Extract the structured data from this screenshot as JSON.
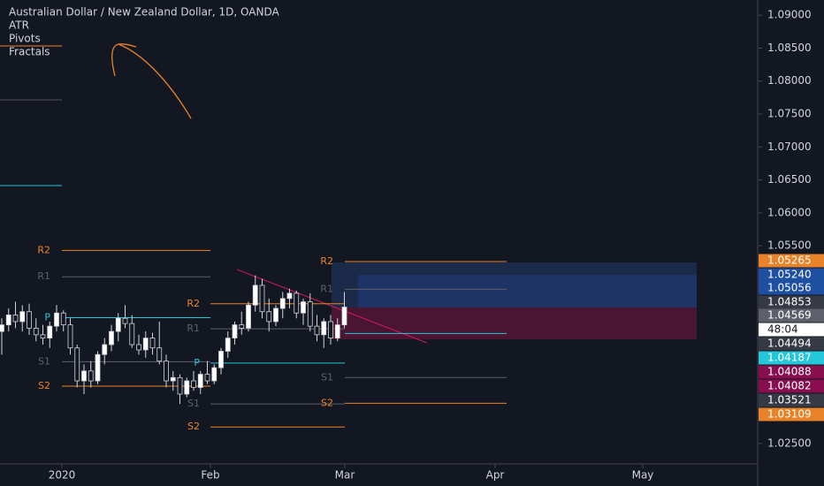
{
  "chart_data": {
    "type": "candlestick",
    "title": "Australian Dollar / New Zealand Dollar, 1D, OANDA",
    "indicators": [
      "ATR",
      "Pivots",
      "Fractals"
    ],
    "ylim": [
      1.0219,
      1.0923
    ],
    "yticks": [
      {
        "value": 1.09,
        "label": "1.09000"
      },
      {
        "value": 1.085,
        "label": "1.08500"
      },
      {
        "value": 1.08,
        "label": "1.08000"
      },
      {
        "value": 1.075,
        "label": "1.07500"
      },
      {
        "value": 1.07,
        "label": "1.07000"
      },
      {
        "value": 1.065,
        "label": "1.06500"
      },
      {
        "value": 1.06,
        "label": "1.06000"
      },
      {
        "value": 1.055,
        "label": "1.05500"
      },
      {
        "value": 1.025,
        "label": "1.02500"
      }
    ],
    "xlabels": [
      "2020",
      "Feb",
      "Mar",
      "Apr",
      "May"
    ],
    "candles": [
      [
        1.042,
        1.044,
        1.0385,
        1.043
      ],
      [
        1.043,
        1.0455,
        1.042,
        1.0445
      ],
      [
        1.0445,
        1.0465,
        1.0425,
        1.0435
      ],
      [
        1.0435,
        1.046,
        1.042,
        1.045
      ],
      [
        1.045,
        1.0462,
        1.0415,
        1.0425
      ],
      [
        1.0425,
        1.044,
        1.0405,
        1.0415
      ],
      [
        1.0415,
        1.043,
        1.04,
        1.041
      ],
      [
        1.041,
        1.0435,
        1.0395,
        1.0428
      ],
      [
        1.0428,
        1.046,
        1.042,
        1.0448
      ],
      [
        1.0448,
        1.0452,
        1.042,
        1.043
      ],
      [
        1.043,
        1.044,
        1.0385,
        1.0395
      ],
      [
        1.0395,
        1.04,
        1.0335,
        1.0345
      ],
      [
        1.0345,
        1.037,
        1.0325,
        1.036
      ],
      [
        1.036,
        1.0375,
        1.0335,
        1.0345
      ],
      [
        1.0345,
        1.039,
        1.034,
        1.0385
      ],
      [
        1.0385,
        1.041,
        1.037,
        1.04
      ],
      [
        1.04,
        1.043,
        1.039,
        1.042
      ],
      [
        1.042,
        1.0448,
        1.0405,
        1.044
      ],
      [
        1.044,
        1.046,
        1.0425,
        1.0432
      ],
      [
        1.0432,
        1.0445,
        1.0395,
        1.04
      ],
      [
        1.04,
        1.0415,
        1.0385,
        1.0392
      ],
      [
        1.0392,
        1.042,
        1.038,
        1.041
      ],
      [
        1.041,
        1.0418,
        1.0385,
        1.0395
      ],
      [
        1.0395,
        1.0435,
        1.037,
        1.0375
      ],
      [
        1.0375,
        1.0385,
        1.0335,
        1.0345
      ],
      [
        1.0345,
        1.036,
        1.033,
        1.035
      ],
      [
        1.035,
        1.0355,
        1.031,
        1.0325
      ],
      [
        1.0325,
        1.035,
        1.032,
        1.0345
      ],
      [
        1.0345,
        1.036,
        1.033,
        1.0335
      ],
      [
        1.0335,
        1.036,
        1.0325,
        1.0355
      ],
      [
        1.0355,
        1.0375,
        1.034,
        1.0345
      ],
      [
        1.0345,
        1.037,
        1.034,
        1.0365
      ],
      [
        1.0365,
        1.0395,
        1.0355,
        1.039
      ],
      [
        1.039,
        1.042,
        1.038,
        1.041
      ],
      [
        1.041,
        1.0435,
        1.04,
        1.043
      ],
      [
        1.043,
        1.045,
        1.0415,
        1.0425
      ],
      [
        1.0425,
        1.0465,
        1.042,
        1.046
      ],
      [
        1.046,
        1.0505,
        1.045,
        1.049
      ],
      [
        1.049,
        1.05,
        1.044,
        1.045
      ],
      [
        1.045,
        1.047,
        1.042,
        1.0435
      ],
      [
        1.0435,
        1.046,
        1.0428,
        1.0455
      ],
      [
        1.0455,
        1.048,
        1.044,
        1.047
      ],
      [
        1.047,
        1.0485,
        1.0455,
        1.0478
      ],
      [
        1.0478,
        1.0482,
        1.044,
        1.0448
      ],
      [
        1.0448,
        1.047,
        1.043,
        1.0465
      ],
      [
        1.0465,
        1.0478,
        1.042,
        1.0428
      ],
      [
        1.0428,
        1.0445,
        1.0405,
        1.0415
      ],
      [
        1.0415,
        1.044,
        1.0395,
        1.0435
      ],
      [
        1.0435,
        1.0445,
        1.04,
        1.041
      ],
      [
        1.041,
        1.044,
        1.0405,
        1.043
      ],
      [
        1.043,
        1.048,
        1.0425,
        1.0457
      ]
    ],
    "pivots": [
      {
        "levels": [
          {
            "label": "R2",
            "value": 1.0543
          },
          {
            "label": "R1",
            "value": 1.0503
          },
          {
            "label": "P",
            "value": 1.0441
          },
          {
            "label": "S1",
            "value": 1.0374
          },
          {
            "label": "S2",
            "value": 1.0337
          }
        ]
      },
      {
        "levels": [
          {
            "label": "R2",
            "value": 1.0462
          },
          {
            "label": "R1",
            "value": 1.0424
          },
          {
            "label": "P",
            "value": 1.0372
          },
          {
            "label": "S1",
            "value": 1.031
          },
          {
            "label": "S2",
            "value": 1.0275
          }
        ]
      },
      {
        "levels": [
          {
            "label": "R2",
            "value": 1.0526
          },
          {
            "label": "R1",
            "value": 1.0484
          },
          {
            "label": "P",
            "value": 1.0417
          },
          {
            "label": "S1",
            "value": 1.035
          },
          {
            "label": "S2",
            "value": 1.0311
          }
        ]
      }
    ],
    "price_tags": [
      {
        "label": "1.05265",
        "color": "#e8832a"
      },
      {
        "label": "1.05240",
        "color": "#1e4fa0"
      },
      {
        "label": "1.05056",
        "color": "#1e4fa0"
      },
      {
        "label": "1.04853",
        "color": "#363a45"
      },
      {
        "label": "1.04569",
        "color": "#5d606b"
      },
      {
        "label": "48:04",
        "color": "#ffffff"
      },
      {
        "label": "1.04494",
        "color": "#363a45"
      },
      {
        "label": "1.04187",
        "color": "#26c6da"
      },
      {
        "label": "1.04088",
        "color": "#880e4f"
      },
      {
        "label": "1.04082",
        "color": "#880e4f"
      },
      {
        "label": "1.03521",
        "color": "#363a45"
      },
      {
        "label": "1.03109",
        "color": "#e8832a"
      }
    ]
  }
}
